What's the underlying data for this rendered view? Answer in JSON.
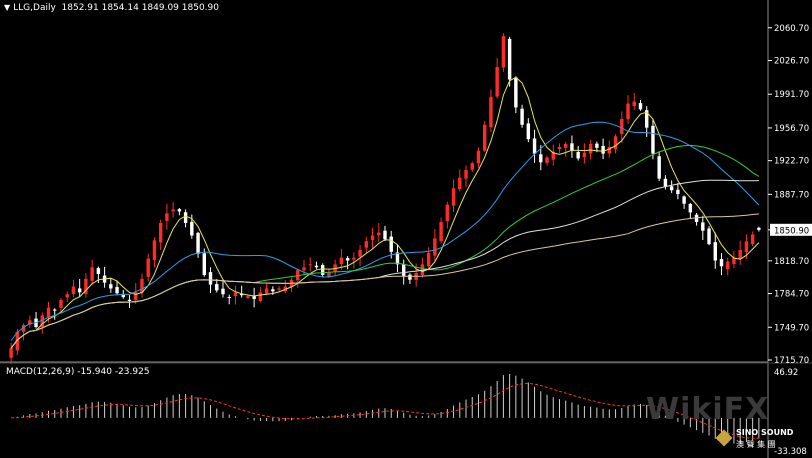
{
  "header": {
    "symbol": "LLG,Daily",
    "ohlc": "1852.91 1854.14 1849.09 1850.90"
  },
  "macd_header": "MACD(12,26,9) -15.940 -23.925",
  "price_axis": [
    "2060.70",
    "2026.70",
    "1991.70",
    "1956.70",
    "1922.70",
    "1887.70",
    "1850.90",
    "1818.70",
    "1784.70",
    "1749.70",
    "1715.70"
  ],
  "macd_axis": [
    "46.92",
    "-33.308"
  ],
  "current_price": "1850.90",
  "watermark": "WikiFX",
  "logo": {
    "line1": "SINO SOUND",
    "line2": "澳 聲 集 團"
  },
  "colors": {
    "up": "#ff2a2a",
    "down": "#ffffff",
    "ma5": "#e8e84a",
    "ma_blue": "#2aa0e8",
    "ma_green": "#2ecc40",
    "ma_white": "#e0e0e0",
    "ma_tan": "#d8c89a",
    "signal": "#ff3030",
    "grid": "#888888"
  },
  "chart_data": {
    "type": "candlestick",
    "symbol": "LLG",
    "timeframe": "Daily",
    "ylim": [
      1715.7,
      2075
    ],
    "last": {
      "open": 1852.91,
      "high": 1854.14,
      "low": 1849.09,
      "close": 1850.9
    },
    "closes": [
      1728,
      1745,
      1752,
      1757,
      1750,
      1762,
      1770,
      1767,
      1778,
      1784,
      1792,
      1786,
      1800,
      1812,
      1805,
      1796,
      1790,
      1785,
      1781,
      1777,
      1786,
      1800,
      1821,
      1840,
      1858,
      1868,
      1872,
      1870,
      1858,
      1845,
      1826,
      1804,
      1794,
      1788,
      1784,
      1781,
      1786,
      1783,
      1782,
      1779,
      1786,
      1790,
      1787,
      1790,
      1792,
      1799,
      1809,
      1812,
      1815,
      1812,
      1804,
      1807,
      1815,
      1822,
      1819,
      1822,
      1830,
      1839,
      1845,
      1848,
      1841,
      1828,
      1815,
      1803,
      1799,
      1806,
      1815,
      1827,
      1842,
      1859,
      1877,
      1894,
      1905,
      1913,
      1920,
      1933,
      1960,
      1989,
      2020,
      2052,
      2007,
      1978,
      1960,
      1945,
      1930,
      1921,
      1926,
      1932,
      1937,
      1940,
      1933,
      1925,
      1931,
      1940,
      1936,
      1930,
      1937,
      1948,
      1966,
      1982,
      1984,
      1976,
      1957,
      1930,
      1904,
      1896,
      1892,
      1888,
      1878,
      1869,
      1859,
      1850,
      1836,
      1819,
      1813,
      1818,
      1822,
      1830,
      1839,
      1846,
      1850.9
    ],
    "macd": {
      "name": "MACD(12,26,9)",
      "main": -15.94,
      "signal": -23.925,
      "range": [
        -33.308,
        46.92
      ]
    },
    "moving_averages": [
      "ma5",
      "ma_blue",
      "ma_green",
      "ma_white",
      "ma_tan"
    ]
  }
}
